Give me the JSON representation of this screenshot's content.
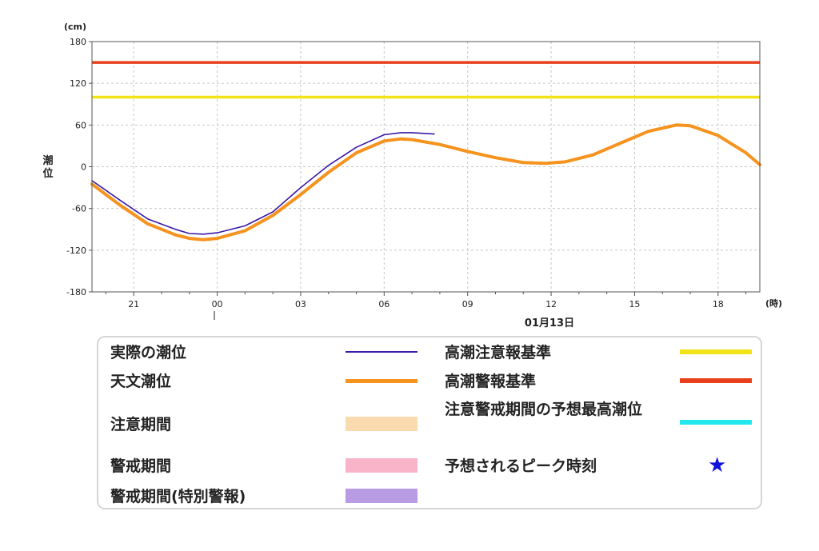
{
  "chart_data": {
    "type": "line",
    "y_unit_label": "(cm)",
    "ylabel": "潮位",
    "x_unit_label": "(時)",
    "date_label": "01月13日",
    "ylim": [
      -180,
      180
    ],
    "yticks": [
      "180",
      "120",
      "60",
      "0",
      "-60",
      "-120",
      "-180"
    ],
    "ytick_values": [
      180,
      120,
      60,
      0,
      -60,
      -120,
      -180
    ],
    "xlim_hours": [
      19.5,
      43.5
    ],
    "xticks": [
      "21",
      "00",
      "03",
      "06",
      "09",
      "12",
      "15",
      "18"
    ],
    "xtick_hours": [
      21,
      24,
      27,
      30,
      33,
      36,
      39,
      42
    ],
    "grid": true,
    "horizontal_lines": [
      {
        "name": "高潮警報基準",
        "y": 150,
        "color": "#e8401c"
      },
      {
        "name": "高潮注意報基準",
        "y": 100,
        "color": "#f2e316"
      }
    ],
    "series": [
      {
        "name": "天文潮位",
        "color": "#f5931e",
        "x": [
          19.5,
          20.5,
          21.5,
          22.5,
          23.0,
          23.5,
          24.0,
          25.0,
          26.0,
          27.0,
          28.0,
          29.0,
          30.0,
          30.6,
          31.0,
          32.0,
          33.0,
          34.0,
          35.0,
          35.8,
          36.5,
          37.5,
          38.5,
          39.5,
          40.5,
          41.0,
          42.0,
          43.0,
          43.5
        ],
        "y": [
          -25,
          -55,
          -82,
          -98,
          -103,
          -105,
          -103,
          -92,
          -70,
          -40,
          -8,
          20,
          37,
          40,
          39,
          32,
          22,
          13,
          6,
          5,
          7,
          17,
          34,
          51,
          60,
          59,
          45,
          20,
          3
        ]
      },
      {
        "name": "実際の潮位",
        "color": "#3a1aa8",
        "x": [
          19.5,
          20.5,
          21.5,
          22.5,
          23.0,
          23.5,
          24.0,
          25.0,
          26.0,
          27.0,
          28.0,
          29.0,
          30.0,
          30.6,
          31.0,
          31.8
        ],
        "y": [
          -20,
          -48,
          -75,
          -90,
          -96,
          -97,
          -95,
          -85,
          -65,
          -30,
          2,
          28,
          46,
          49,
          49,
          47
        ]
      }
    ]
  },
  "legend": {
    "left": [
      {
        "label": "実際の潮位",
        "color": "#3a1aa8",
        "kind": "thin"
      },
      {
        "label": "天文潮位",
        "color": "#f5931e",
        "kind": "thick"
      },
      {
        "label": "注意期間",
        "color": "#fadbb0",
        "kind": "band"
      },
      {
        "label": "警戒期間",
        "color": "#f9b4c9",
        "kind": "band"
      },
      {
        "label": "警戒期間(特別警報)",
        "color": "#b89be3",
        "kind": "band"
      }
    ],
    "right": [
      {
        "label": "高潮注意報基準",
        "color": "#f2e316",
        "kind": "thick"
      },
      {
        "label": "高潮警報基準",
        "color": "#e8401c",
        "kind": "thick"
      },
      {
        "label": "注意警戒期間の予想最高潮位",
        "color": "#22e8ee",
        "kind": "thick"
      },
      {
        "label": "予想されるピーク時刻",
        "color": "#1111dd",
        "kind": "star",
        "symbol": "★"
      }
    ]
  }
}
